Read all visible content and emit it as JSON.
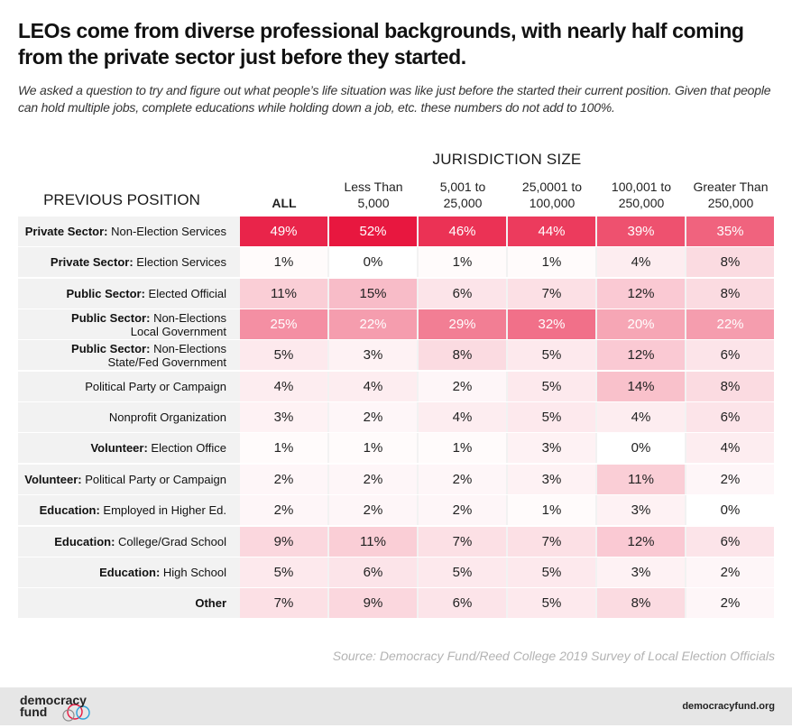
{
  "title": "LEOs come from diverse professional backgrounds, with nearly half coming from the private sector just before they started.",
  "subtitle": "We asked a question to try and figure out what people’s life situation was like just before the started their current position. Given that people can hold multiple jobs, complete educations while holding down a job, etc. these numbers do not add to 100%.",
  "source": "Source: Democracy Fund/Reed College 2019 Survey of Local Election Officials",
  "footer": {
    "logo_line1": "democracy",
    "logo_line2": "fund",
    "site": "democracyfund.org"
  },
  "colors": {
    "max": "#e8173f",
    "zero": "#ffffff",
    "row_bg": "#f2f2f2"
  },
  "chart_data": {
    "type": "heatmap",
    "row_header": "PREVIOUS POSITION",
    "column_group_label": "JURISDICTION SIZE",
    "columns": [
      "ALL",
      "Less Than\n5,000",
      "5,001 to\n25,000",
      "25,0001 to\n100,000",
      "100,001 to\n250,000",
      "Greater Than\n250,000"
    ],
    "rows": [
      {
        "category": "Private Sector:",
        "label": " Non-Election Services",
        "values": [
          "49%",
          "52%",
          "46%",
          "44%",
          "39%",
          "35%"
        ]
      },
      {
        "category": "Private Sector:",
        "label": " Election Services",
        "values": [
          "1%",
          "0%",
          "1%",
          "1%",
          "4%",
          "8%"
        ]
      },
      {
        "category": "Public Sector:",
        "label": " Elected Official",
        "values": [
          "11%",
          "15%",
          "6%",
          "7%",
          "12%",
          "8%"
        ]
      },
      {
        "category": "Public Sector:",
        "label": " Non-Elections\nLocal Government",
        "values": [
          "25%",
          "22%",
          "29%",
          "32%",
          "20%",
          "22%"
        ]
      },
      {
        "category": "Public Sector:",
        "label": " Non-Elections\nState/Fed Government",
        "values": [
          "5%",
          "3%",
          "8%",
          "5%",
          "12%",
          "6%"
        ]
      },
      {
        "category": "",
        "label": "Political Party or Campaign",
        "values": [
          "4%",
          "4%",
          "2%",
          "5%",
          "14%",
          "8%"
        ]
      },
      {
        "category": "",
        "label": "Nonprofit Organization",
        "values": [
          "3%",
          "2%",
          "4%",
          "5%",
          "4%",
          "6%"
        ]
      },
      {
        "category": "Volunteer:",
        "label": " Election Office",
        "values": [
          "1%",
          "1%",
          "1%",
          "3%",
          "0%",
          "4%"
        ]
      },
      {
        "category": "Volunteer:",
        "label": " Political Party or Campaign",
        "values": [
          "2%",
          "2%",
          "2%",
          "3%",
          "11%",
          "2%"
        ]
      },
      {
        "category": "Education:",
        "label": " Employed in Higher Ed.",
        "values": [
          "2%",
          "2%",
          "2%",
          "1%",
          "3%",
          "0%"
        ]
      },
      {
        "category": "Education:",
        "label": " College/Grad School",
        "values": [
          "9%",
          "11%",
          "7%",
          "7%",
          "12%",
          "6%"
        ]
      },
      {
        "category": "Education:",
        "label": " High School",
        "values": [
          "5%",
          "6%",
          "5%",
          "5%",
          "3%",
          "2%"
        ]
      },
      {
        "category": "",
        "label": "Other",
        "values": [
          "7%",
          "9%",
          "6%",
          "5%",
          "8%",
          "2%"
        ]
      }
    ]
  }
}
